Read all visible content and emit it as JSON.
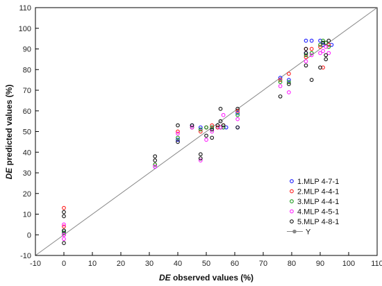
{
  "chart_data": {
    "type": "scatter",
    "xlabel_prefix": "DE",
    "xlabel_rest": " observed values (%)",
    "ylabel_prefix": "DE",
    "ylabel_rest": " predicted values (%)",
    "xlim": [
      -10,
      110
    ],
    "ylim": [
      -10,
      110
    ],
    "xticks": [
      -10,
      0,
      10,
      20,
      30,
      40,
      50,
      60,
      70,
      80,
      90,
      100,
      110
    ],
    "yticks": [
      -10,
      0,
      10,
      20,
      30,
      40,
      50,
      60,
      70,
      80,
      90,
      100,
      110
    ],
    "grid": false,
    "legend_position": "bottom-right",
    "series": [
      {
        "name": "1.MLP 4-7-1",
        "color": "#1a1aff",
        "points": [
          [
            0,
            0
          ],
          [
            0,
            1
          ],
          [
            0,
            2
          ],
          [
            32,
            33
          ],
          [
            40,
            46
          ],
          [
            45,
            53
          ],
          [
            48,
            52
          ],
          [
            50,
            52
          ],
          [
            52,
            52
          ],
          [
            54,
            52
          ],
          [
            55,
            52
          ],
          [
            56,
            52
          ],
          [
            57,
            52
          ],
          [
            61,
            52
          ],
          [
            61,
            59
          ],
          [
            76,
            76
          ],
          [
            79,
            75
          ],
          [
            85,
            94
          ],
          [
            85,
            88
          ],
          [
            87,
            94
          ],
          [
            90,
            94
          ],
          [
            91,
            92
          ],
          [
            92,
            93
          ],
          [
            93,
            92
          ],
          [
            94,
            92
          ]
        ]
      },
      {
        "name": "2.MLP 4-4-1",
        "color": "#ff2020",
        "points": [
          [
            0,
            13
          ],
          [
            0,
            4
          ],
          [
            0,
            0
          ],
          [
            32,
            34
          ],
          [
            40,
            50
          ],
          [
            45,
            52
          ],
          [
            48,
            50
          ],
          [
            50,
            52
          ],
          [
            52,
            53
          ],
          [
            54,
            52
          ],
          [
            55,
            52
          ],
          [
            56,
            53
          ],
          [
            61,
            60
          ],
          [
            76,
            75
          ],
          [
            79,
            78
          ],
          [
            85,
            90
          ],
          [
            85,
            86
          ],
          [
            87,
            90
          ],
          [
            90,
            91
          ],
          [
            91,
            81
          ],
          [
            92,
            93
          ],
          [
            93,
            92
          ]
        ]
      },
      {
        "name": "3.MLP 4-4-1",
        "color": "#1a9a1a",
        "points": [
          [
            0,
            1
          ],
          [
            0,
            2
          ],
          [
            32,
            34
          ],
          [
            40,
            47
          ],
          [
            45,
            52
          ],
          [
            48,
            51
          ],
          [
            50,
            52
          ],
          [
            52,
            52
          ],
          [
            55,
            52
          ],
          [
            56,
            52
          ],
          [
            61,
            58
          ],
          [
            76,
            74
          ],
          [
            79,
            74
          ],
          [
            85,
            87
          ],
          [
            87,
            88
          ],
          [
            90,
            92
          ],
          [
            91,
            94
          ],
          [
            92,
            93
          ],
          [
            93,
            91
          ]
        ]
      },
      {
        "name": "4.MLP 4-5-1",
        "color": "#ff20ff",
        "points": [
          [
            0,
            5
          ],
          [
            0,
            -2
          ],
          [
            0,
            0
          ],
          [
            32,
            33
          ],
          [
            40,
            49
          ],
          [
            45,
            52
          ],
          [
            48,
            36
          ],
          [
            50,
            46
          ],
          [
            52,
            50
          ],
          [
            55,
            52
          ],
          [
            56,
            58
          ],
          [
            61,
            56
          ],
          [
            76,
            72
          ],
          [
            79,
            69
          ],
          [
            85,
            84
          ],
          [
            87,
            87
          ],
          [
            90,
            88
          ],
          [
            91,
            89
          ],
          [
            92,
            91
          ],
          [
            93,
            88
          ]
        ]
      },
      {
        "name": "5.MLP 4-8-1",
        "color": "#111111",
        "points": [
          [
            0,
            11
          ],
          [
            0,
            9
          ],
          [
            0,
            -4
          ],
          [
            0,
            2
          ],
          [
            32,
            38
          ],
          [
            32,
            36
          ],
          [
            40,
            53
          ],
          [
            40,
            45
          ],
          [
            45,
            53
          ],
          [
            48,
            39
          ],
          [
            48,
            37
          ],
          [
            50,
            48
          ],
          [
            52,
            47
          ],
          [
            52,
            51
          ],
          [
            54,
            53
          ],
          [
            55,
            61
          ],
          [
            55,
            55
          ],
          [
            56,
            53
          ],
          [
            61,
            61
          ],
          [
            61,
            52
          ],
          [
            76,
            67
          ],
          [
            79,
            73
          ],
          [
            85,
            90
          ],
          [
            85,
            88
          ],
          [
            85,
            82
          ],
          [
            87,
            75
          ],
          [
            90,
            81
          ],
          [
            91,
            93
          ],
          [
            92,
            87
          ],
          [
            92,
            85
          ],
          [
            93,
            94
          ]
        ]
      }
    ],
    "reference_line": {
      "name": "Y",
      "from": [
        -10,
        -10
      ],
      "to": [
        110,
        110
      ],
      "color": "#888888"
    }
  }
}
